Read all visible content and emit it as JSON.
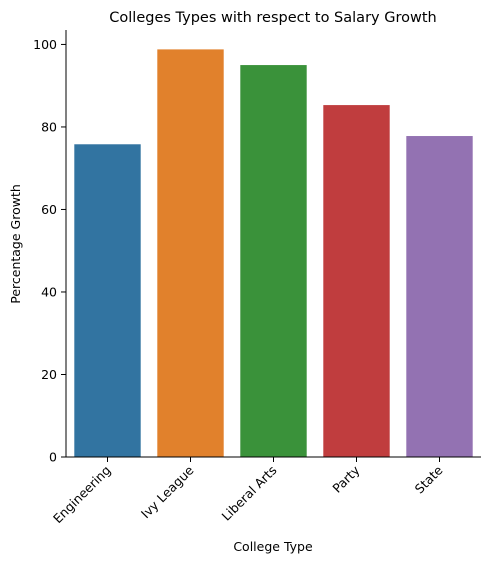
{
  "chart_data": {
    "type": "bar",
    "title": "Colleges Types with respect to Salary Growth",
    "xlabel": "College Type",
    "ylabel": "Percentage Growth",
    "categories": [
      "Engineering",
      "Ivy League",
      "Liberal Arts",
      "Party",
      "State"
    ],
    "values": [
      75.8,
      98.8,
      95.0,
      85.3,
      77.8
    ],
    "colors": [
      "#3274a1",
      "#e1812c",
      "#3a923a",
      "#c03d3e",
      "#9372b2"
    ],
    "ylim": [
      0,
      103.5
    ],
    "yticks": [
      0,
      20,
      40,
      60,
      80,
      100
    ],
    "grid": false,
    "legend": "none"
  }
}
